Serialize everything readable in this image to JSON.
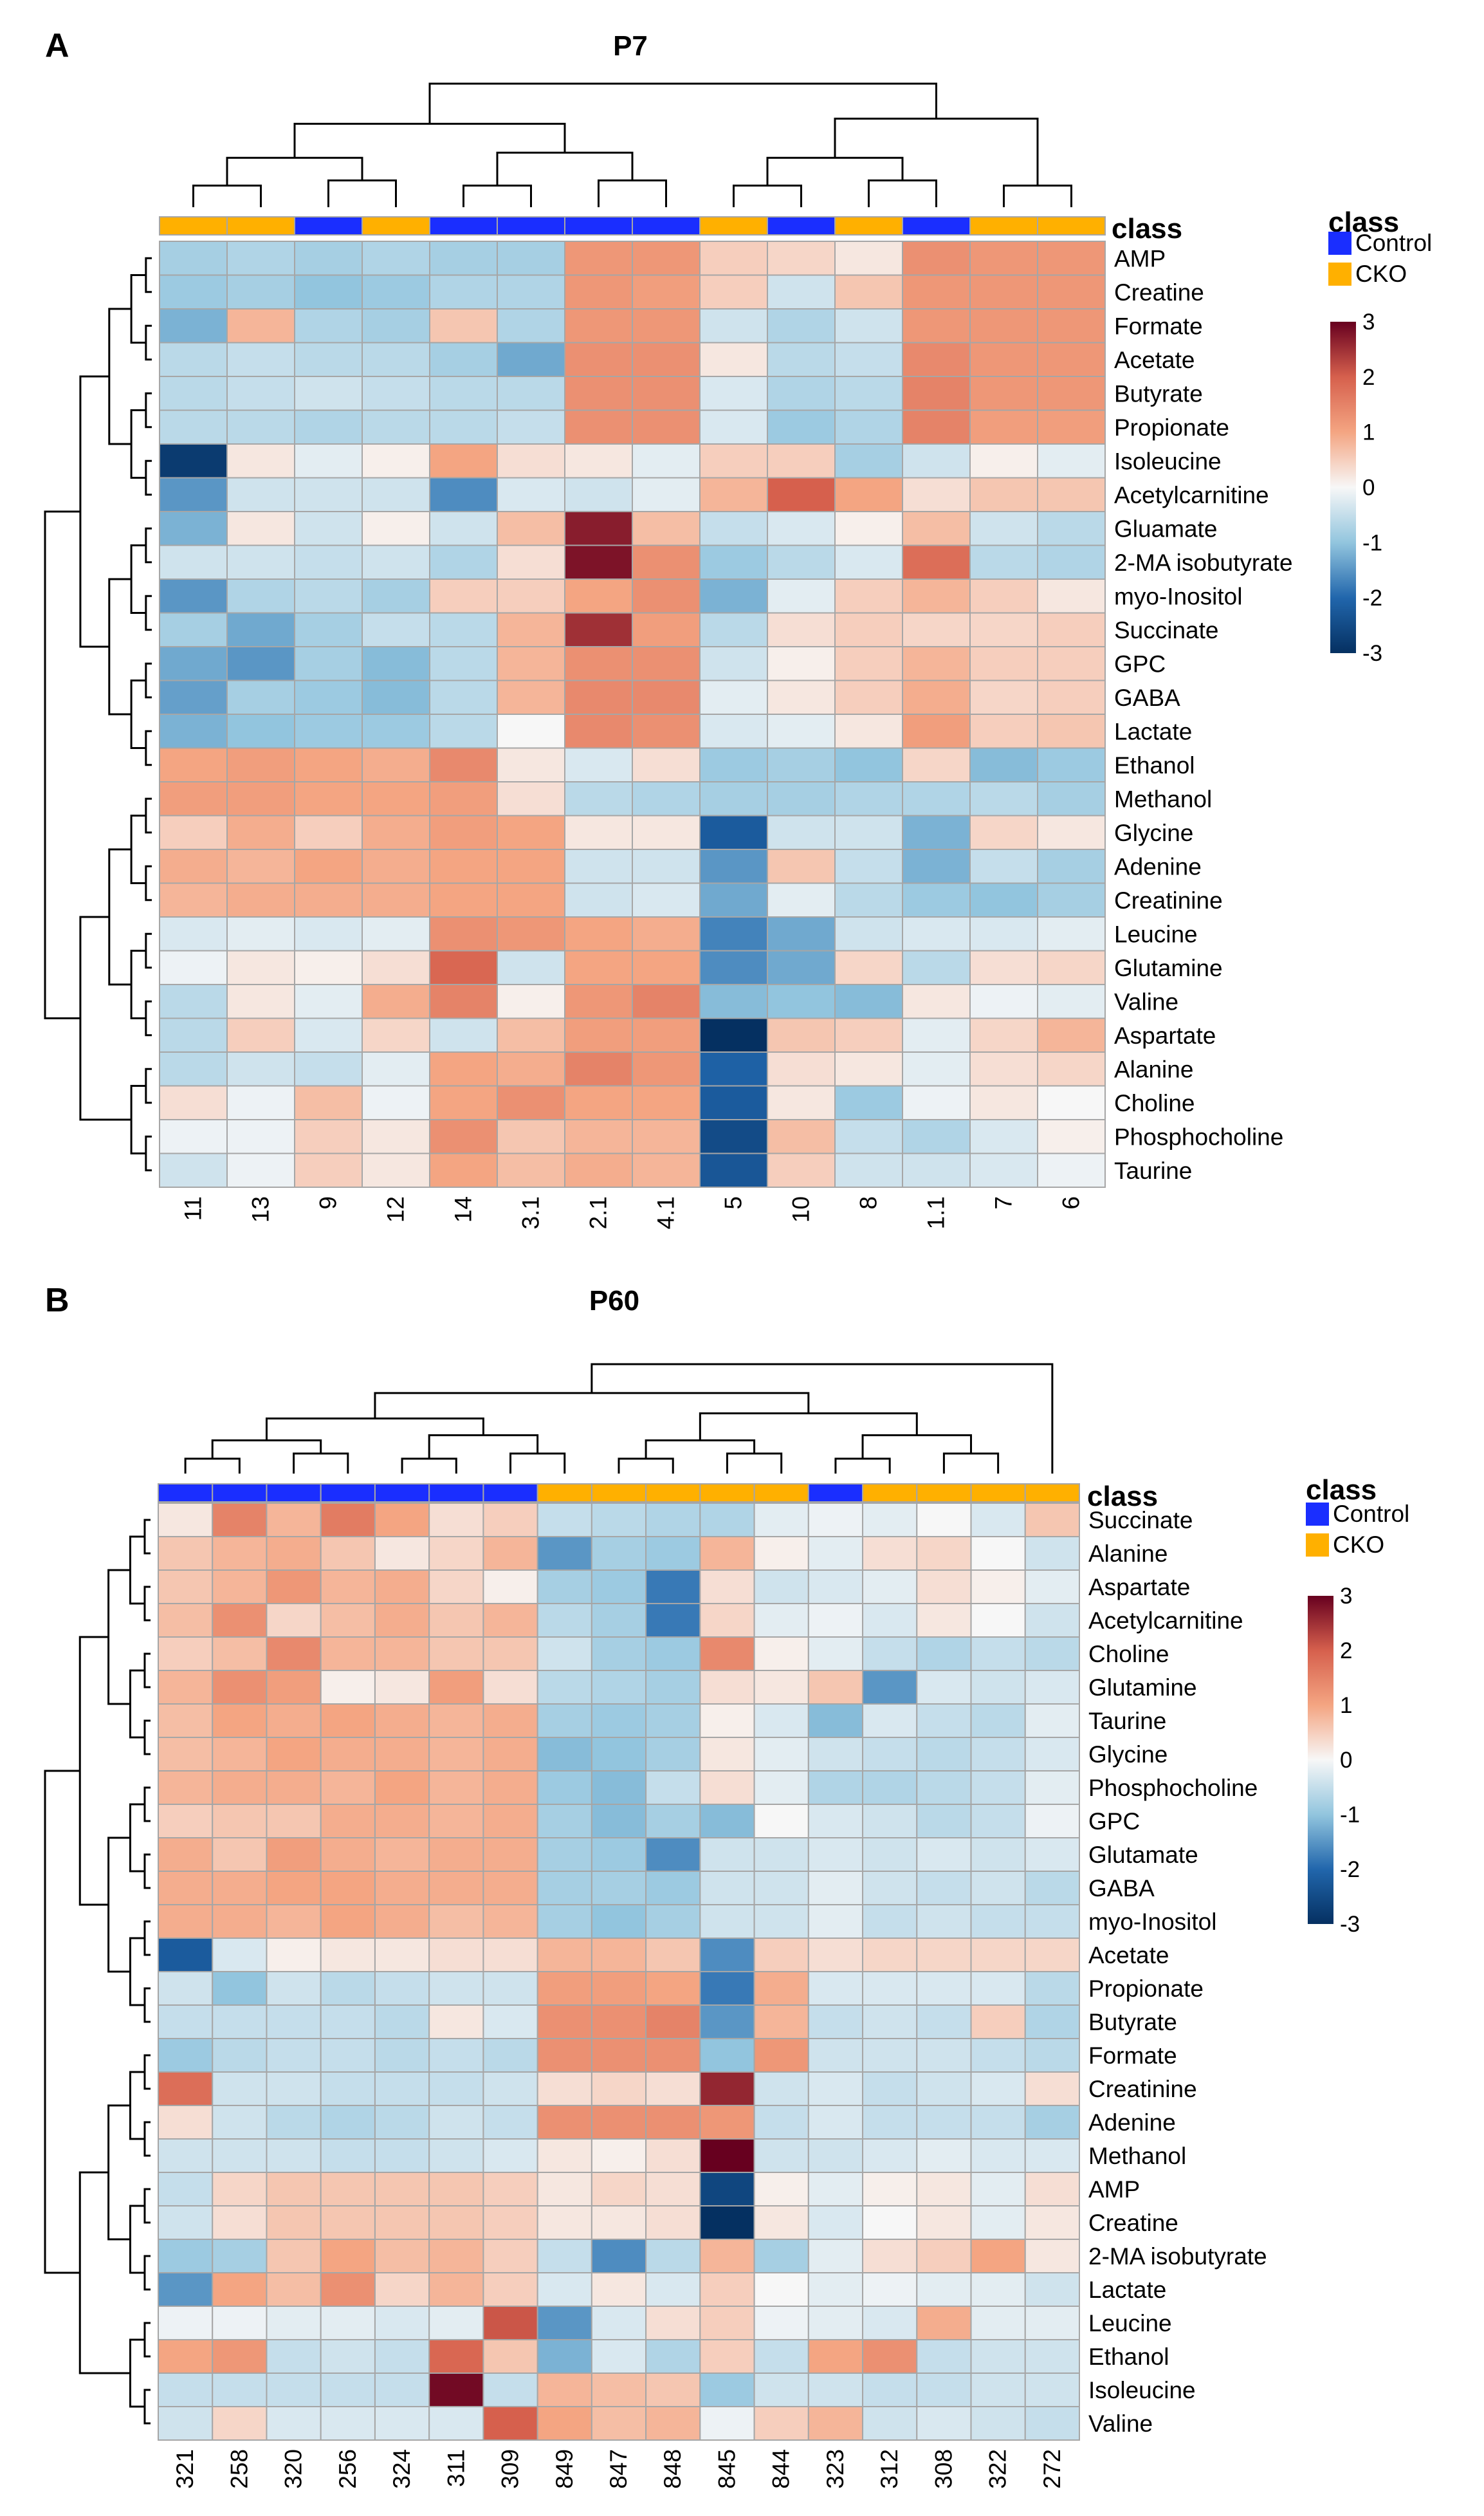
{
  "colors": {
    "control": "#1a2eff",
    "cko": "#ffb000",
    "low": "#053061",
    "mid": "#f7f7f7",
    "high": "#67001f",
    "grid": "#a6a6a6"
  },
  "chart_data": [
    {
      "type": "heatmap",
      "panel_label": "A",
      "title": "P7",
      "class_label": "class",
      "legend": {
        "title": "class",
        "entries": [
          "Control",
          "CKO"
        ],
        "scale_ticks": [
          "3",
          "2",
          "1",
          "0",
          "-1",
          "-2",
          "-3"
        ],
        "range": [
          -3,
          3
        ]
      },
      "columns": [
        "11",
        "13",
        "9",
        "12",
        "14",
        "3.1",
        "2.1",
        "4.1",
        "5",
        "10",
        "8",
        "1.1",
        "7",
        "6"
      ],
      "column_class": [
        "CKO",
        "CKO",
        "Control",
        "CKO",
        "Control",
        "Control",
        "Control",
        "Control",
        "CKO",
        "Control",
        "CKO",
        "Control",
        "CKO",
        "CKO"
      ],
      "rows": [
        "AMP",
        "Creatine",
        "Formate",
        "Acetate",
        "Butyrate",
        "Propionate",
        "Isoleucine",
        "Acetylcarnitine",
        "Gluamate",
        "2-MA isobutyrate",
        "myo-Inositol",
        "Succinate",
        "GPC",
        "GABA",
        "Lactate",
        "Ethanol",
        "Methanol",
        "Glycine",
        "Adenine",
        "Creatinine",
        "Leucine",
        "Glutamine",
        "Valine",
        "Aspartate",
        "Alanine",
        "Choline",
        "Phosphocholine",
        "Taurine"
      ],
      "values": [
        [
          -0.8,
          -0.7,
          -0.8,
          -0.7,
          -0.8,
          -0.8,
          1.2,
          1.2,
          0.5,
          0.4,
          0.2,
          1.3,
          1.2,
          1.2
        ],
        [
          -0.9,
          -0.8,
          -1.0,
          -0.9,
          -0.7,
          -0.7,
          1.2,
          1.1,
          0.5,
          -0.4,
          0.6,
          1.2,
          1.2,
          1.2
        ],
        [
          -1.2,
          0.8,
          -0.7,
          -0.8,
          0.6,
          -0.7,
          1.2,
          1.2,
          -0.4,
          -0.7,
          -0.4,
          1.2,
          1.2,
          1.2
        ],
        [
          -0.6,
          -0.5,
          -0.6,
          -0.6,
          -0.8,
          -1.3,
          1.3,
          1.3,
          0.2,
          -0.6,
          -0.5,
          1.4,
          1.2,
          1.2
        ],
        [
          -0.6,
          -0.5,
          -0.4,
          -0.5,
          -0.6,
          -0.6,
          1.3,
          1.3,
          -0.3,
          -0.7,
          -0.6,
          1.5,
          1.2,
          1.2
        ],
        [
          -0.6,
          -0.6,
          -0.7,
          -0.6,
          -0.6,
          -0.5,
          1.3,
          1.3,
          -0.3,
          -0.9,
          -0.7,
          1.5,
          1.1,
          1.1
        ],
        [
          -2.8,
          0.2,
          -0.2,
          0.1,
          1.0,
          0.3,
          0.2,
          -0.2,
          0.5,
          0.5,
          -0.8,
          -0.4,
          0.1,
          -0.2
        ],
        [
          -1.5,
          -0.4,
          -0.4,
          -0.4,
          -1.6,
          -0.3,
          -0.4,
          -0.2,
          0.8,
          2.0,
          1.0,
          0.3,
          0.6,
          0.6
        ],
        [
          -1.2,
          0.2,
          -0.4,
          0.1,
          -0.4,
          0.7,
          2.7,
          0.7,
          -0.5,
          -0.3,
          0.1,
          0.7,
          -0.4,
          -0.6
        ],
        [
          -0.4,
          -0.4,
          -0.5,
          -0.4,
          -0.7,
          0.3,
          2.8,
          1.3,
          -0.9,
          -0.6,
          -0.3,
          1.8,
          -0.6,
          -0.7
        ],
        [
          -1.5,
          -0.7,
          -0.6,
          -0.8,
          0.5,
          0.5,
          1.0,
          1.3,
          -1.2,
          -0.2,
          0.5,
          0.8,
          0.5,
          0.2
        ],
        [
          -0.8,
          -1.3,
          -0.8,
          -0.5,
          -0.6,
          0.8,
          2.5,
          1.1,
          -0.6,
          0.3,
          0.5,
          0.4,
          0.4,
          0.5
        ],
        [
          -1.3,
          -1.5,
          -0.8,
          -1.1,
          -0.6,
          0.8,
          1.3,
          1.3,
          -0.4,
          0.1,
          0.5,
          0.8,
          0.5,
          0.5
        ],
        [
          -1.4,
          -0.8,
          -0.9,
          -1.1,
          -0.6,
          0.8,
          1.4,
          1.4,
          -0.2,
          0.2,
          0.5,
          0.9,
          0.4,
          0.5
        ],
        [
          -1.2,
          -1.0,
          -0.9,
          -0.9,
          -0.6,
          0.0,
          1.4,
          1.3,
          -0.3,
          -0.2,
          0.2,
          1.1,
          0.5,
          0.6
        ],
        [
          1.0,
          1.1,
          1.0,
          0.9,
          1.4,
          0.2,
          -0.3,
          0.3,
          -0.9,
          -0.8,
          -1.0,
          0.4,
          -1.1,
          -0.9
        ],
        [
          1.1,
          1.1,
          1.0,
          1.0,
          1.1,
          0.3,
          -0.6,
          -0.7,
          -0.8,
          -0.8,
          -0.7,
          -0.7,
          -0.6,
          -0.8
        ],
        [
          0.5,
          0.9,
          0.5,
          0.9,
          1.1,
          1.0,
          0.2,
          0.2,
          -2.2,
          -0.4,
          -0.4,
          -1.2,
          0.4,
          0.2
        ],
        [
          0.9,
          0.8,
          1.0,
          0.9,
          1.0,
          1.0,
          -0.4,
          -0.4,
          -1.5,
          0.6,
          -0.5,
          -1.2,
          -0.5,
          -0.8
        ],
        [
          0.8,
          0.9,
          0.9,
          0.9,
          1.0,
          1.0,
          -0.4,
          -0.3,
          -1.3,
          -0.2,
          -0.6,
          -0.9,
          -1.0,
          -0.8
        ],
        [
          -0.3,
          -0.2,
          -0.3,
          -0.2,
          1.3,
          1.2,
          1.0,
          0.9,
          -1.7,
          -1.3,
          -0.4,
          -0.3,
          -0.3,
          -0.2
        ],
        [
          -0.1,
          0.2,
          0.1,
          0.3,
          1.9,
          -0.4,
          1.0,
          1.0,
          -1.6,
          -1.3,
          0.4,
          -0.6,
          0.3,
          0.4
        ],
        [
          -0.6,
          0.2,
          -0.2,
          0.9,
          1.5,
          0.1,
          1.2,
          1.5,
          -1.1,
          -1.0,
          -1.1,
          0.2,
          -0.1,
          -0.2
        ],
        [
          -0.6,
          0.5,
          -0.3,
          0.4,
          -0.4,
          0.7,
          1.1,
          1.1,
          -3.0,
          0.6,
          0.5,
          -0.2,
          0.4,
          0.8
        ],
        [
          -0.6,
          -0.4,
          -0.5,
          -0.2,
          1.0,
          0.9,
          1.5,
          1.2,
          -2.1,
          0.3,
          0.2,
          -0.2,
          0.3,
          0.4
        ],
        [
          0.3,
          -0.1,
          0.7,
          -0.1,
          1.0,
          1.3,
          1.0,
          1.0,
          -2.2,
          0.2,
          -0.9,
          -0.1,
          0.2,
          0.0
        ],
        [
          -0.1,
          -0.1,
          0.5,
          0.2,
          1.3,
          0.6,
          0.8,
          0.8,
          -2.5,
          0.7,
          -0.5,
          -0.7,
          -0.3,
          0.1
        ],
        [
          -0.4,
          -0.1,
          0.5,
          0.2,
          1.0,
          0.7,
          0.9,
          0.8,
          -2.3,
          0.5,
          -0.4,
          -0.4,
          -0.3,
          -0.1
        ]
      ],
      "row_dendrogram": "present",
      "column_dendrogram": "present"
    },
    {
      "type": "heatmap",
      "panel_label": "B",
      "title": "P60",
      "class_label": "class",
      "legend": {
        "title": "class",
        "entries": [
          "Control",
          "CKO"
        ],
        "scale_ticks": [
          "3",
          "2",
          "1",
          "0",
          "-1",
          "-2",
          "-3"
        ],
        "range": [
          -3,
          3
        ]
      },
      "columns": [
        "321",
        "258",
        "320",
        "256",
        "324",
        "311",
        "309",
        "849",
        "847",
        "848",
        "845",
        "844",
        "323",
        "312",
        "308",
        "322",
        "272"
      ],
      "column_class": [
        "Control",
        "Control",
        "Control",
        "Control",
        "Control",
        "Control",
        "Control",
        "CKO",
        "CKO",
        "CKO",
        "CKO",
        "CKO",
        "Control",
        "CKO",
        "CKO",
        "CKO",
        "CKO"
      ],
      "rows": [
        "Succinate",
        "Alanine",
        "Aspartate",
        "Acetylcarnitine",
        "Choline",
        "Glutamine",
        "Taurine",
        "Glycine",
        "Phosphocholine",
        "GPC",
        "Glutamate",
        "GABA",
        "myo-Inositol",
        "Acetate",
        "Propionate",
        "Butyrate",
        "Formate",
        "Creatinine",
        "Adenine",
        "Methanol",
        "AMP",
        "Creatine",
        "2-MA isobutyrate",
        "Lactate",
        "Leucine",
        "Ethanol",
        "Isoleucine",
        "Valine"
      ],
      "values": [
        [
          0.2,
          1.5,
          0.8,
          1.6,
          1.0,
          0.3,
          0.5,
          -0.5,
          -0.6,
          -0.7,
          -0.7,
          -0.2,
          -0.1,
          -0.2,
          0.0,
          -0.3,
          0.6
        ],
        [
          0.6,
          0.8,
          0.9,
          0.6,
          0.2,
          0.4,
          0.8,
          -1.5,
          -0.8,
          -0.9,
          0.8,
          0.1,
          -0.2,
          0.3,
          0.4,
          0.0,
          -0.4
        ],
        [
          0.6,
          0.8,
          1.2,
          0.8,
          0.9,
          0.4,
          0.1,
          -0.8,
          -0.9,
          -1.8,
          0.3,
          -0.4,
          -0.3,
          -0.2,
          0.3,
          0.1,
          -0.2
        ],
        [
          0.7,
          1.3,
          0.4,
          0.7,
          0.9,
          0.6,
          0.8,
          -0.6,
          -0.8,
          -1.8,
          0.4,
          -0.2,
          -0.1,
          -0.3,
          0.2,
          0.0,
          -0.4
        ],
        [
          0.5,
          0.7,
          1.4,
          0.8,
          0.8,
          0.6,
          0.6,
          -0.4,
          -0.8,
          -0.9,
          1.4,
          0.1,
          -0.2,
          -0.5,
          -0.7,
          -0.5,
          -0.6
        ],
        [
          0.8,
          1.3,
          1.1,
          0.1,
          0.2,
          1.1,
          0.3,
          -0.6,
          -0.7,
          -0.8,
          0.3,
          0.2,
          0.6,
          -1.5,
          -0.3,
          -0.4,
          -0.3
        ],
        [
          0.7,
          1.0,
          0.9,
          1.0,
          0.9,
          0.8,
          0.9,
          -0.8,
          -0.9,
          -0.8,
          0.1,
          -0.3,
          -1.1,
          -0.3,
          -0.5,
          -0.6,
          -0.2
        ],
        [
          0.7,
          0.8,
          1.0,
          0.9,
          0.9,
          0.8,
          0.9,
          -1.1,
          -1.0,
          -0.8,
          0.2,
          -0.2,
          -0.4,
          -0.5,
          -0.6,
          -0.5,
          -0.3
        ],
        [
          0.8,
          0.9,
          0.9,
          0.8,
          1.0,
          0.8,
          0.9,
          -0.9,
          -1.1,
          -0.5,
          0.3,
          -0.2,
          -0.7,
          -0.7,
          -0.6,
          -0.5,
          -0.2
        ],
        [
          0.5,
          0.6,
          0.6,
          0.9,
          0.9,
          0.8,
          0.9,
          -0.8,
          -1.1,
          -0.8,
          -1.1,
          0.0,
          -0.3,
          -0.4,
          -0.6,
          -0.5,
          -0.1
        ],
        [
          0.9,
          0.6,
          1.1,
          0.9,
          0.8,
          0.9,
          0.9,
          -0.8,
          -0.9,
          -1.6,
          -0.4,
          -0.4,
          -0.3,
          -0.4,
          -0.3,
          -0.4,
          -0.3
        ],
        [
          0.9,
          0.9,
          1.0,
          1.0,
          0.9,
          0.9,
          0.9,
          -0.8,
          -0.8,
          -0.9,
          -0.4,
          -0.4,
          -0.2,
          -0.4,
          -0.5,
          -0.4,
          -0.6
        ],
        [
          0.9,
          0.9,
          0.8,
          1.0,
          0.9,
          0.7,
          0.8,
          -0.8,
          -1.0,
          -0.8,
          -0.4,
          -0.4,
          -0.2,
          -0.5,
          -0.4,
          -0.5,
          -0.5
        ],
        [
          -2.2,
          -0.3,
          0.1,
          0.2,
          0.2,
          0.3,
          0.3,
          0.8,
          0.8,
          0.6,
          -1.6,
          0.5,
          0.3,
          0.4,
          0.4,
          0.4,
          0.4
        ],
        [
          -0.4,
          -1.0,
          -0.4,
          -0.6,
          -0.5,
          -0.4,
          -0.4,
          1.1,
          1.1,
          1.0,
          -1.8,
          0.9,
          -0.3,
          -0.3,
          -0.3,
          -0.3,
          -0.6
        ],
        [
          -0.5,
          -0.5,
          -0.5,
          -0.5,
          -0.6,
          0.2,
          -0.3,
          1.3,
          1.3,
          1.5,
          -1.5,
          0.8,
          -0.5,
          -0.4,
          -0.5,
          0.5,
          -0.7
        ],
        [
          -0.9,
          -0.6,
          -0.5,
          -0.5,
          -0.6,
          -0.5,
          -0.6,
          1.3,
          1.3,
          1.3,
          -1.0,
          1.2,
          -0.4,
          -0.4,
          -0.4,
          -0.5,
          -0.6
        ],
        [
          1.8,
          -0.4,
          -0.4,
          -0.5,
          -0.5,
          -0.5,
          -0.4,
          0.3,
          0.4,
          0.3,
          2.6,
          -0.4,
          -0.3,
          -0.5,
          -0.4,
          -0.3,
          0.3
        ],
        [
          0.3,
          -0.4,
          -0.6,
          -0.7,
          -0.6,
          -0.4,
          -0.5,
          1.3,
          1.3,
          1.3,
          1.2,
          -0.5,
          -0.3,
          -0.5,
          -0.5,
          -0.5,
          -0.8
        ],
        [
          -0.4,
          -0.4,
          -0.4,
          -0.5,
          -0.5,
          -0.4,
          -0.3,
          0.2,
          0.1,
          0.3,
          3.0,
          -0.4,
          -0.4,
          -0.3,
          -0.2,
          -0.3,
          -0.3
        ],
        [
          -0.5,
          0.4,
          0.6,
          0.6,
          0.6,
          0.6,
          0.5,
          0.2,
          0.4,
          0.3,
          -2.6,
          0.1,
          -0.2,
          0.1,
          0.2,
          -0.2,
          0.3
        ],
        [
          -0.4,
          0.3,
          0.6,
          0.6,
          0.6,
          0.6,
          0.5,
          0.2,
          0.2,
          0.3,
          -3.0,
          0.2,
          -0.3,
          0.0,
          0.2,
          -0.2,
          0.2
        ],
        [
          -0.9,
          -0.8,
          0.6,
          1.0,
          0.7,
          0.8,
          0.5,
          -0.5,
          -1.6,
          -0.6,
          0.8,
          -0.8,
          -0.2,
          0.3,
          0.5,
          1.0,
          0.2
        ],
        [
          -1.5,
          1.0,
          0.7,
          1.3,
          0.4,
          0.8,
          0.5,
          -0.3,
          0.2,
          -0.3,
          0.5,
          0.0,
          -0.2,
          -0.1,
          -0.2,
          -0.2,
          -0.4
        ],
        [
          -0.1,
          -0.1,
          -0.2,
          -0.2,
          -0.3,
          -0.2,
          2.1,
          -1.5,
          -0.3,
          0.3,
          0.5,
          -0.1,
          -0.2,
          -0.3,
          0.9,
          -0.2,
          -0.2
        ],
        [
          1.0,
          1.2,
          -0.5,
          -0.4,
          -0.5,
          1.9,
          0.6,
          -1.2,
          -0.3,
          -0.7,
          0.5,
          -0.5,
          1.0,
          1.3,
          -0.5,
          -0.4,
          -0.4
        ],
        [
          -0.5,
          -0.5,
          -0.5,
          -0.5,
          -0.5,
          2.9,
          -0.5,
          0.8,
          0.7,
          0.6,
          -0.9,
          -0.4,
          -0.4,
          -0.5,
          -0.5,
          -0.4,
          -0.4
        ],
        [
          -0.4,
          0.4,
          -0.3,
          -0.3,
          -0.3,
          -0.3,
          2.0,
          1.0,
          0.7,
          0.8,
          -0.1,
          0.5,
          0.8,
          -0.4,
          -0.3,
          -0.4,
          -0.5
        ]
      ],
      "row_dendrogram": "present",
      "column_dendrogram": "present"
    }
  ]
}
